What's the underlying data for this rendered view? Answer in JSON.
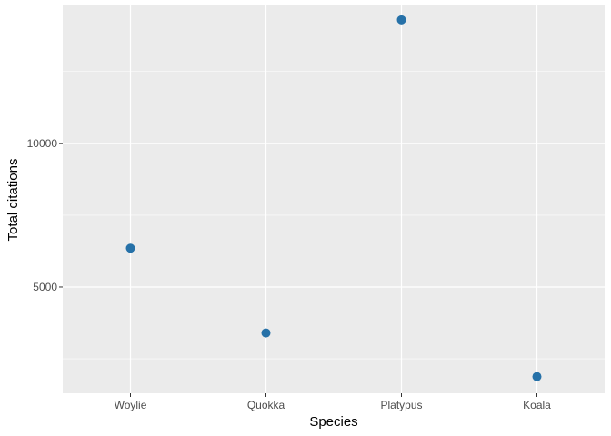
{
  "chart_data": {
    "type": "scatter",
    "title": "",
    "xlabel": "Species",
    "ylabel": "Total citations",
    "categories": [
      "Woylie",
      "Quokka",
      "Platypus",
      "Koala"
    ],
    "values": [
      6350,
      3400,
      14300,
      1880
    ],
    "ylim": [
      1300,
      14800
    ],
    "y_ticks": [
      5000,
      10000
    ],
    "y_tick_labels": [
      "5000",
      "10000"
    ],
    "grid": true,
    "point_color": "#2671a8",
    "panel_color": "#ebebeb",
    "grid_color": "#ffffff"
  }
}
